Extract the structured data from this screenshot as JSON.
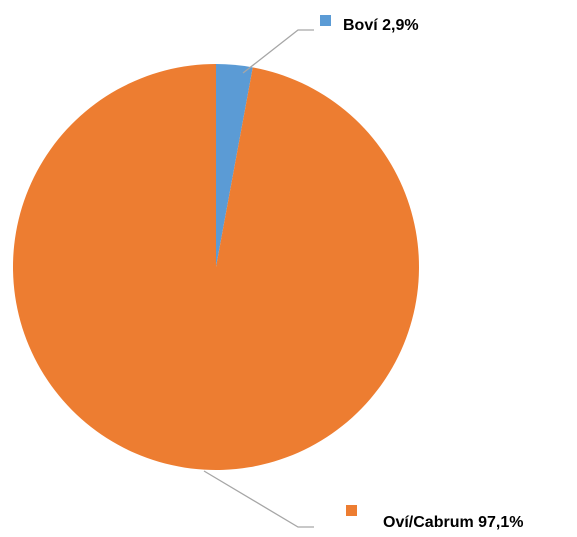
{
  "chart_data": {
    "type": "pie",
    "title": "",
    "slices": [
      {
        "label": "Boví",
        "value": 2.9,
        "display": "Boví 2,9%",
        "color": "#5B9BD5"
      },
      {
        "label": "Oví/Cabrum",
        "value": 97.1,
        "display": "Oví/Cabrum 97,1%",
        "color": "#ED7D31"
      }
    ],
    "start_angle_deg": 0,
    "direction": "clockwise",
    "legend": "none",
    "leader_line_color": "#A6A6A6"
  }
}
